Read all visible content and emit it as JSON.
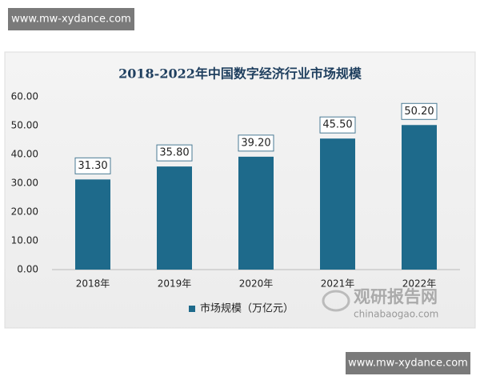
{
  "watermarks": [
    "www.mw-xydance.com",
    "www.mw-xydance.com"
  ],
  "logo": {
    "name": "观研报告网",
    "site": "chinabaogao.com"
  },
  "chart_data": {
    "type": "bar",
    "title": "2018-2022年中国数字经济行业市场规模",
    "categories": [
      "2018年",
      "2019年",
      "2020年",
      "2021年",
      "2022年"
    ],
    "series": [
      {
        "name": "市场规模（万亿元）",
        "color": "#1e6a8b",
        "values": [
          31.3,
          35.8,
          39.2,
          45.5,
          50.2
        ],
        "value_labels": [
          "31.30",
          "35.80",
          "39.20",
          "45.50",
          "50.20"
        ]
      }
    ],
    "ylim": [
      0,
      60
    ],
    "yticks": [
      {
        "value": 0,
        "label": "0.00"
      },
      {
        "value": 10,
        "label": "10.00"
      },
      {
        "value": 20,
        "label": "20.00"
      },
      {
        "value": 30,
        "label": "30.00"
      },
      {
        "value": 40,
        "label": "40.00"
      },
      {
        "value": 50,
        "label": "50.00"
      },
      {
        "value": 60,
        "label": "60.00"
      }
    ],
    "grid": false,
    "legend": "bottom"
  }
}
